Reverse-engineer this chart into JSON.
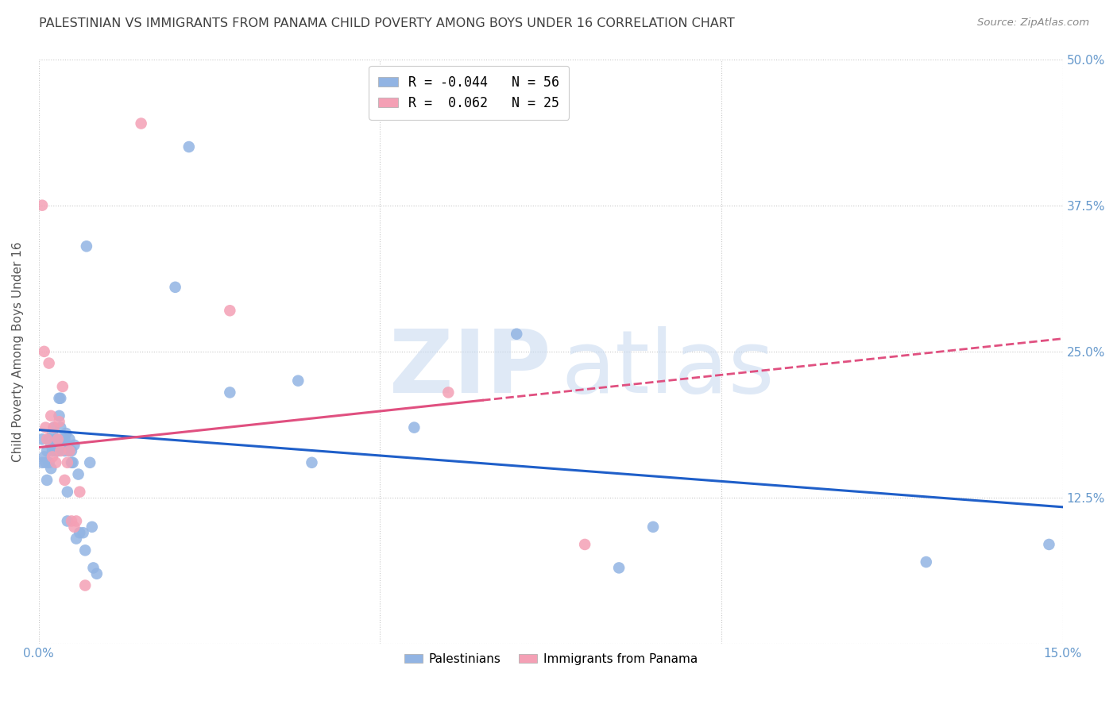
{
  "title": "PALESTINIAN VS IMMIGRANTS FROM PANAMA CHILD POVERTY AMONG BOYS UNDER 16 CORRELATION CHART",
  "source": "Source: ZipAtlas.com",
  "ylabel": "Child Poverty Among Boys Under 16",
  "xlim": [
    0,
    0.15
  ],
  "ylim": [
    0,
    0.5
  ],
  "xticks": [
    0.0,
    0.05,
    0.1,
    0.15
  ],
  "xtick_labels": [
    "0.0%",
    "",
    "",
    "15.0%"
  ],
  "ytick_labels_right": [
    "50.0%",
    "37.5%",
    "25.0%",
    "12.5%",
    ""
  ],
  "yticks": [
    0.5,
    0.375,
    0.25,
    0.125,
    0.0
  ],
  "legend1_label": "R = -0.044   N = 56",
  "legend2_label": "R =  0.062   N = 25",
  "legend_bottom_label1": "Palestinians",
  "legend_bottom_label2": "Immigrants from Panama",
  "blue_color": "#92b4e3",
  "pink_color": "#f4a0b5",
  "blue_line_color": "#1f5fc9",
  "pink_line_color": "#e05080",
  "background_color": "#ffffff",
  "grid_color": "#c8c8c8",
  "title_color": "#404040",
  "axis_label_color": "#555555",
  "tick_color": "#6699cc",
  "blue_x": [
    0.0005,
    0.0005,
    0.0008,
    0.001,
    0.0012,
    0.0012,
    0.0015,
    0.0015,
    0.0018,
    0.0018,
    0.002,
    0.002,
    0.0022,
    0.0022,
    0.0025,
    0.0025,
    0.0028,
    0.0028,
    0.003,
    0.003,
    0.0032,
    0.0032,
    0.0035,
    0.0038,
    0.0038,
    0.004,
    0.004,
    0.0042,
    0.0042,
    0.0045,
    0.0045,
    0.0048,
    0.0048,
    0.005,
    0.0052,
    0.0055,
    0.0058,
    0.006,
    0.0065,
    0.0068,
    0.007,
    0.0075,
    0.0078,
    0.008,
    0.0085,
    0.02,
    0.022,
    0.028,
    0.038,
    0.04,
    0.055,
    0.07,
    0.085,
    0.09,
    0.13,
    0.148
  ],
  "blue_y": [
    0.175,
    0.155,
    0.16,
    0.155,
    0.165,
    0.14,
    0.175,
    0.155,
    0.17,
    0.15,
    0.18,
    0.165,
    0.185,
    0.17,
    0.175,
    0.165,
    0.175,
    0.165,
    0.21,
    0.195,
    0.21,
    0.185,
    0.17,
    0.175,
    0.165,
    0.18,
    0.17,
    0.13,
    0.105,
    0.175,
    0.165,
    0.165,
    0.155,
    0.155,
    0.17,
    0.09,
    0.145,
    0.095,
    0.095,
    0.08,
    0.34,
    0.155,
    0.1,
    0.065,
    0.06,
    0.305,
    0.425,
    0.215,
    0.225,
    0.155,
    0.185,
    0.265,
    0.065,
    0.1,
    0.07,
    0.085
  ],
  "pink_x": [
    0.0005,
    0.0008,
    0.001,
    0.0012,
    0.0015,
    0.0018,
    0.002,
    0.0022,
    0.0025,
    0.0028,
    0.003,
    0.0032,
    0.0035,
    0.0038,
    0.0042,
    0.0045,
    0.0048,
    0.0052,
    0.0055,
    0.006,
    0.0068,
    0.015,
    0.028,
    0.06,
    0.08
  ],
  "pink_y": [
    0.375,
    0.25,
    0.185,
    0.175,
    0.24,
    0.195,
    0.16,
    0.185,
    0.155,
    0.175,
    0.19,
    0.165,
    0.22,
    0.14,
    0.155,
    0.165,
    0.105,
    0.1,
    0.105,
    0.13,
    0.05,
    0.445,
    0.285,
    0.215,
    0.085
  ],
  "blue_intercept": 0.183,
  "blue_slope": -0.44,
  "pink_intercept": 0.168,
  "pink_slope": 0.62
}
